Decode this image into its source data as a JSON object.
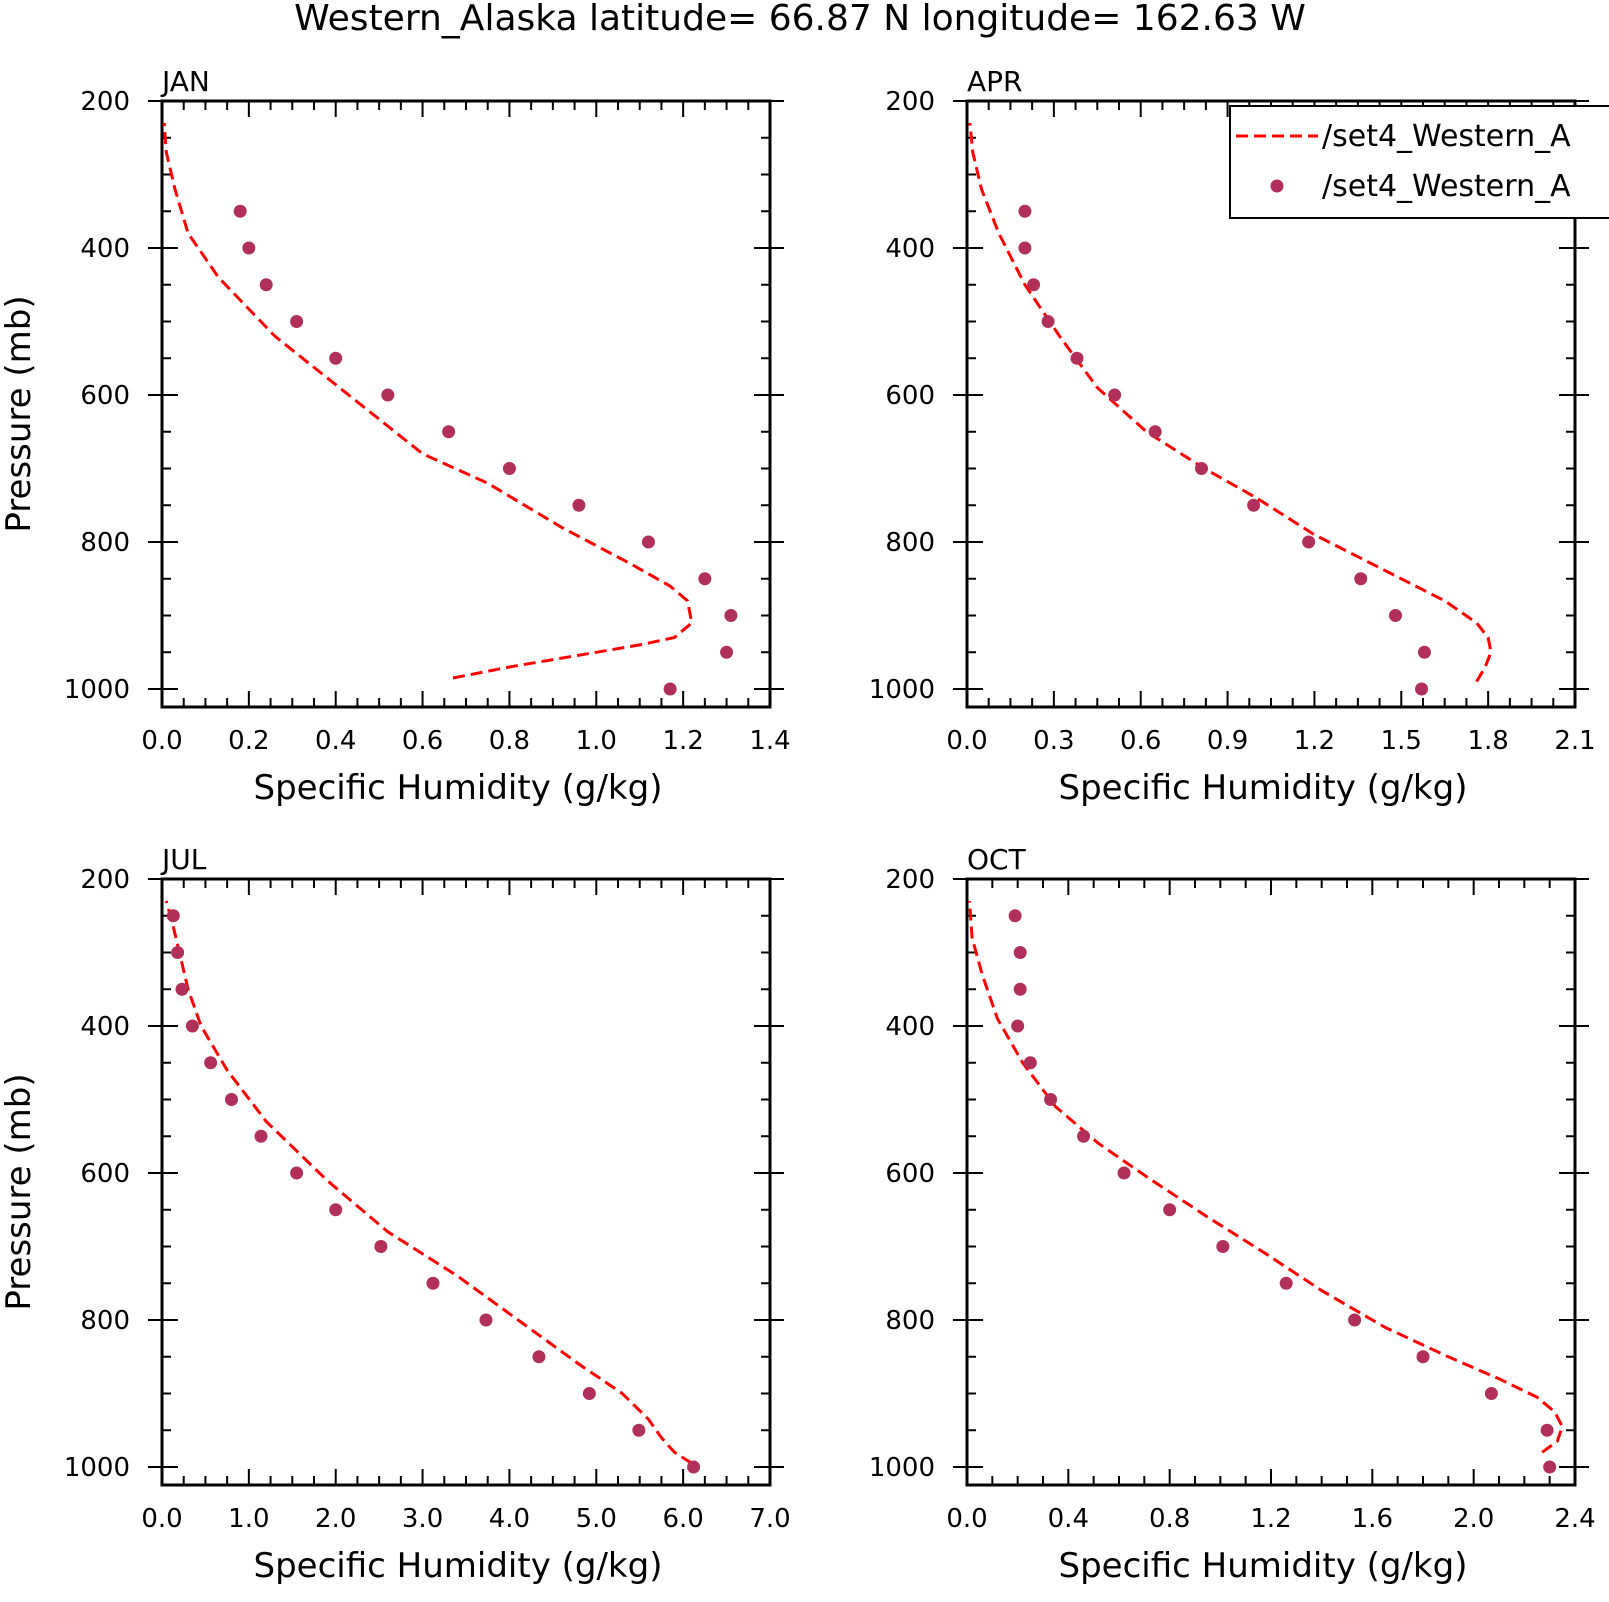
{
  "figure_title": "Western_Alaska  latitude= 66.87 N longitude= 162.63 W",
  "colors": {
    "model_line": "#ff0000",
    "obs_points": "#b0305a",
    "axes": "#000000"
  },
  "legend": {
    "entries": [
      {
        "label": "/set4_Western_A",
        "style": "dashed-line",
        "color": "#ff0000"
      },
      {
        "label": "/set4_Western_A",
        "style": "marker",
        "color": "#b0305a"
      }
    ]
  },
  "chart_data": [
    {
      "panel": "JAN",
      "type": "line",
      "xlabel": "Specific Humidity (g/kg)",
      "ylabel": "Pressure (mb)",
      "xlim": [
        0,
        1.4
      ],
      "xticks": [
        0.0,
        0.2,
        0.4,
        0.6,
        0.8,
        1.0,
        1.2,
        1.4
      ],
      "xtick_labels": [
        "0.0",
        "0.2",
        "0.4",
        "0.6",
        "0.8",
        "1.0",
        "1.2",
        "1.4"
      ],
      "ylim": [
        200,
        1000
      ],
      "y_inverted": true,
      "yticks": [
        200,
        400,
        600,
        800,
        1000
      ],
      "ytick_labels": [
        "200",
        "400",
        "600",
        "800",
        "1000"
      ],
      "series": [
        {
          "name": "/set4_Western_A",
          "kind": "dashed-line",
          "x": [
            0.67,
            0.8,
            0.9,
            1.0,
            1.1,
            1.18,
            1.22,
            1.21,
            1.17,
            1.08,
            0.92,
            0.75,
            0.6,
            0.43,
            0.26,
            0.13,
            0.06,
            0.03,
            0.01,
            0.005
          ],
          "y": [
            985,
            970,
            960,
            950,
            940,
            930,
            910,
            880,
            860,
            830,
            780,
            720,
            680,
            600,
            520,
            440,
            380,
            320,
            270,
            230
          ]
        },
        {
          "name": "/set4_Western_A",
          "kind": "markers",
          "x": [
            0.18,
            0.2,
            0.24,
            0.31,
            0.4,
            0.52,
            0.66,
            0.8,
            0.96,
            1.12,
            1.25,
            1.31,
            1.3,
            1.17
          ],
          "y": [
            350,
            400,
            450,
            500,
            550,
            600,
            650,
            700,
            750,
            800,
            850,
            900,
            950,
            1000
          ]
        }
      ]
    },
    {
      "panel": "APR",
      "type": "line",
      "xlabel": "Specific Humidity (g/kg)",
      "ylabel": "",
      "xlim": [
        0,
        2.1
      ],
      "xticks": [
        0.0,
        0.3,
        0.6,
        0.9,
        1.2,
        1.5,
        1.8,
        2.1
      ],
      "xtick_labels": [
        "0.0",
        "0.3",
        "0.6",
        "0.9",
        "1.2",
        "1.5",
        "1.8",
        "2.1"
      ],
      "ylim": [
        200,
        1000
      ],
      "y_inverted": true,
      "yticks": [
        200,
        400,
        600,
        800,
        1000
      ],
      "ytick_labels": [
        "200",
        "400",
        "600",
        "800",
        "1000"
      ],
      "series": [
        {
          "name": "/set4_Western_A",
          "kind": "dashed-line",
          "x": [
            1.76,
            1.79,
            1.81,
            1.8,
            1.76,
            1.65,
            1.5,
            1.35,
            1.2,
            1.0,
            0.82,
            0.62,
            0.45,
            0.32,
            0.2,
            0.11,
            0.05,
            0.02,
            0.01
          ],
          "y": [
            990,
            970,
            950,
            930,
            910,
            880,
            850,
            820,
            790,
            740,
            700,
            650,
            590,
            520,
            450,
            380,
            320,
            270,
            230
          ]
        },
        {
          "name": "/set4_Western_A",
          "kind": "markers",
          "x": [
            0.2,
            0.2,
            0.23,
            0.28,
            0.38,
            0.51,
            0.65,
            0.81,
            0.99,
            1.18,
            1.36,
            1.48,
            1.58,
            1.57
          ],
          "y": [
            350,
            400,
            450,
            500,
            550,
            600,
            650,
            700,
            750,
            800,
            850,
            900,
            950,
            1000
          ]
        }
      ]
    },
    {
      "panel": "JUL",
      "type": "line",
      "xlabel": "Specific Humidity (g/kg)",
      "ylabel": "Pressure (mb)",
      "xlim": [
        0,
        7.0
      ],
      "xticks": [
        0.0,
        1.0,
        2.0,
        3.0,
        4.0,
        5.0,
        6.0,
        7.0
      ],
      "xtick_labels": [
        "0.0",
        "1.0",
        "2.0",
        "3.0",
        "4.0",
        "5.0",
        "6.0",
        "7.0"
      ],
      "ylim": [
        200,
        1000
      ],
      "y_inverted": true,
      "yticks": [
        200,
        400,
        600,
        800,
        1000
      ],
      "ytick_labels": [
        "200",
        "400",
        "600",
        "800",
        "1000"
      ],
      "series": [
        {
          "name": "/set4_Western_A",
          "kind": "dashed-line",
          "x": [
            6.1,
            5.9,
            5.75,
            5.6,
            5.3,
            4.8,
            4.1,
            3.4,
            2.6,
            1.9,
            1.2,
            0.75,
            0.45,
            0.3,
            0.2,
            0.12,
            0.05
          ],
          "y": [
            995,
            980,
            960,
            935,
            900,
            860,
            800,
            740,
            680,
            610,
            530,
            460,
            400,
            350,
            300,
            260,
            230
          ]
        },
        {
          "name": "/set4_Western_A",
          "kind": "markers",
          "x": [
            0.13,
            0.18,
            0.23,
            0.35,
            0.56,
            0.8,
            1.14,
            1.55,
            2.0,
            2.52,
            3.12,
            3.73,
            4.34,
            4.92,
            5.49,
            6.12
          ],
          "y": [
            250,
            300,
            350,
            400,
            450,
            500,
            550,
            600,
            650,
            700,
            750,
            800,
            850,
            900,
            950,
            1000
          ]
        }
      ]
    },
    {
      "panel": "OCT",
      "type": "line",
      "xlabel": "Specific Humidity (g/kg)",
      "ylabel": "",
      "xlim": [
        0,
        2.4
      ],
      "xticks": [
        0.0,
        0.4,
        0.8,
        1.2,
        1.6,
        2.0,
        2.4
      ],
      "xtick_labels": [
        "0.0",
        "0.4",
        "0.8",
        "1.2",
        "1.6",
        "2.0",
        "2.4"
      ],
      "ylim": [
        200,
        1000
      ],
      "y_inverted": true,
      "yticks": [
        200,
        400,
        600,
        800,
        1000
      ],
      "ytick_labels": [
        "200",
        "400",
        "600",
        "800",
        "1000"
      ],
      "series": [
        {
          "name": "/set4_Western_A",
          "kind": "dashed-line",
          "x": [
            2.27,
            2.33,
            2.35,
            2.32,
            2.25,
            2.1,
            1.9,
            1.65,
            1.4,
            1.18,
            0.95,
            0.73,
            0.52,
            0.35,
            0.22,
            0.12,
            0.06,
            0.02,
            0.01
          ],
          "y": [
            980,
            965,
            945,
            925,
            905,
            880,
            850,
            810,
            760,
            710,
            660,
            610,
            560,
            510,
            450,
            390,
            330,
            280,
            230
          ]
        },
        {
          "name": "/set4_Western_A",
          "kind": "markers",
          "x": [
            0.19,
            0.21,
            0.21,
            0.2,
            0.25,
            0.33,
            0.46,
            0.62,
            0.8,
            1.01,
            1.26,
            1.53,
            1.8,
            2.07,
            2.29,
            2.3
          ],
          "y": [
            250,
            300,
            350,
            400,
            450,
            500,
            550,
            600,
            650,
            700,
            750,
            800,
            850,
            900,
            950,
            1000
          ]
        }
      ]
    }
  ]
}
